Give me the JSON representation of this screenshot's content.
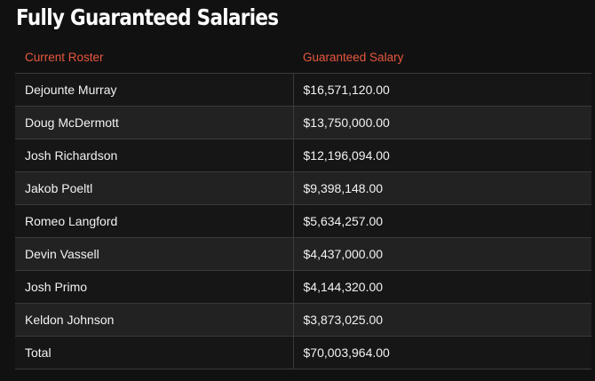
{
  "title": "Fully Guaranteed Salaries",
  "table": {
    "headers": {
      "roster": "Current Roster",
      "salary": "Guaranteed Salary"
    },
    "rows": [
      {
        "name": "Dejounte Murray",
        "salary": "$16,571,120.00"
      },
      {
        "name": "Doug McDermott",
        "salary": "$13,750,000.00"
      },
      {
        "name": "Josh Richardson",
        "salary": "$12,196,094.00"
      },
      {
        "name": "Jakob Poeltl",
        "salary": "$9,398,148.00"
      },
      {
        "name": "Romeo Langford",
        "salary": "$5,634,257.00"
      },
      {
        "name": "Devin Vassell",
        "salary": "$4,437,000.00"
      },
      {
        "name": "Josh Primo",
        "salary": "$4,144,320.00"
      },
      {
        "name": "Keldon Johnson",
        "salary": "$3,873,025.00"
      },
      {
        "name": "Total",
        "salary": "$70,003,964.00"
      }
    ]
  },
  "colors": {
    "background": "#111111",
    "header_text": "#e8573f",
    "row_odd": "#161616",
    "row_even": "#222222",
    "text": "#f2f2f2"
  }
}
